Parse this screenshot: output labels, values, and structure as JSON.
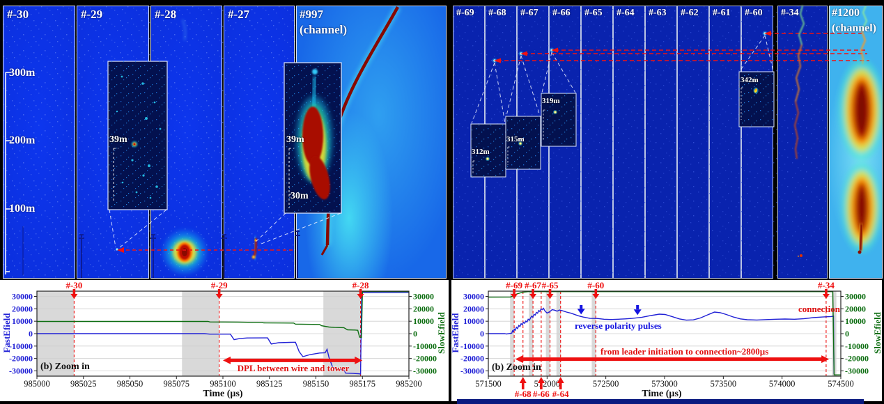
{
  "colors": {
    "fast_curve": "#2121d6",
    "slow_curve": "#0e6e12",
    "marker_red": "#ee1111",
    "annotation_blue": "#1414e0",
    "band_gray": "#d9d9d9",
    "frame_bg_left": "#0a2cd4",
    "frame_bg_right": "#0923ae",
    "channel_red": "#8a0a00"
  },
  "panels": {
    "left": {
      "frames": [
        {
          "label": "#-30"
        },
        {
          "label": "#-29"
        },
        {
          "label": "#-28"
        },
        {
          "label": "#-27"
        },
        {
          "label": "#997",
          "label2": "(channel)"
        }
      ],
      "ruler_labels": [
        "300m",
        "200m",
        "100m"
      ],
      "inset29_label": "39m",
      "inset27_top": "39m",
      "inset27_bottom": "30m"
    },
    "right": {
      "frames": [
        {
          "label": "#-69"
        },
        {
          "label": "#-68"
        },
        {
          "label": "#-67"
        },
        {
          "label": "#-66"
        },
        {
          "label": "#-65"
        },
        {
          "label": "#-64"
        },
        {
          "label": "#-63"
        },
        {
          "label": "#-62"
        },
        {
          "label": "#-61"
        },
        {
          "label": "#-60"
        },
        {
          "label": "#-34"
        },
        {
          "label": "#1200",
          "label2": "(channel)"
        }
      ],
      "insets": [
        "312m",
        "315m",
        "319m",
        "342m"
      ]
    }
  },
  "chart_data": [
    {
      "type": "line",
      "xlabel": "Time (µs)",
      "ylabel_left": "FastEfield",
      "ylabel_right": "SlowEfield",
      "xlim": [
        985000,
        985200
      ],
      "ylim": [
        -34200,
        34200
      ],
      "x_ticks": [
        985000,
        985025,
        985050,
        985075,
        985100,
        985125,
        985150,
        985175,
        985200
      ],
      "y_ticks": [
        30000,
        20000,
        10000,
        0,
        -10000,
        -20000,
        -30000
      ],
      "exposure_bands": [
        [
          985000,
          985020
        ],
        [
          985078,
          985098
        ],
        [
          985154,
          985174
        ]
      ],
      "frame_markers": [
        {
          "label": "#-30",
          "t": 985020,
          "pos": "top"
        },
        {
          "label": "#-29",
          "t": 985098,
          "pos": "top"
        },
        {
          "label": "#-28",
          "t": 985174,
          "pos": "top"
        }
      ],
      "span_arrow": {
        "t0": 985100,
        "t1": 985175,
        "v": -21500
      },
      "series": [
        {
          "name": "FastEfield",
          "color": "#2121d6",
          "points": [
            [
              985000,
              0
            ],
            [
              985090,
              0
            ],
            [
              985093,
              -400
            ],
            [
              985104,
              -400
            ],
            [
              985106,
              -4800
            ],
            [
              985109,
              -4000
            ],
            [
              985113,
              -3500
            ],
            [
              985124,
              -3400
            ],
            [
              985126,
              -8300
            ],
            [
              985130,
              -7300
            ],
            [
              985136,
              -7000
            ],
            [
              985139,
              -6900
            ],
            [
              985141,
              -14500
            ],
            [
              985143,
              -18500
            ],
            [
              985147,
              -16800
            ],
            [
              985152,
              -15600
            ],
            [
              985155,
              -15400
            ],
            [
              985156,
              -12600
            ],
            [
              985157,
              -19000
            ],
            [
              985159,
              -27000
            ],
            [
              985161,
              -28800
            ],
            [
              985165,
              -29200
            ],
            [
              985166,
              -31800
            ],
            [
              985170,
              -32000
            ],
            [
              985173,
              -32300
            ],
            [
              985174,
              -32500
            ],
            [
              985174.6,
              33000
            ],
            [
              985200,
              33200
            ]
          ]
        },
        {
          "name": "SlowEfield",
          "color": "#0e6e12",
          "points": [
            [
              985000,
              9800
            ],
            [
              985092,
              9800
            ],
            [
              985093,
              9400
            ],
            [
              985108,
              9300
            ],
            [
              985116,
              9100
            ],
            [
              985121,
              9050
            ],
            [
              985122,
              8700
            ],
            [
              985132,
              8600
            ],
            [
              985138,
              8500
            ],
            [
              985139,
              7700
            ],
            [
              985145,
              7500
            ],
            [
              985152,
              7400
            ],
            [
              985153,
              6400
            ],
            [
              985157,
              5300
            ],
            [
              985160,
              5000
            ],
            [
              985165,
              4800
            ],
            [
              985167,
              3100
            ],
            [
              985171,
              2900
            ],
            [
              985172.5,
              2700
            ],
            [
              985173.5,
              -2800
            ],
            [
              985174.5,
              -3000
            ],
            [
              985175,
              34000
            ],
            [
              985200,
              33800
            ]
          ]
        }
      ],
      "annotations": {
        "zoom_in": "(b) Zoom in",
        "span_label": "DPL between wire and tower"
      }
    },
    {
      "type": "line",
      "xlabel": "Time (µs)",
      "ylabel_left": "FastEfield",
      "ylabel_right": "SlowEfield",
      "xlim": [
        571500,
        574500
      ],
      "ylim": [
        -34200,
        34200
      ],
      "x_ticks": [
        571500,
        572000,
        572500,
        573000,
        573500,
        574000,
        574500
      ],
      "y_ticks": [
        30000,
        20000,
        10000,
        0,
        -10000,
        -20000,
        -30000
      ],
      "exposure_bands": [
        [
          571685,
          571720
        ],
        [
          571845,
          571880
        ],
        [
          571990,
          572025
        ],
        [
          572080,
          572115
        ],
        [
          572380,
          572415
        ],
        [
          574425,
          574462
        ]
      ],
      "frame_markers": [
        {
          "label": "#-69",
          "t": 571720,
          "pos": "top"
        },
        {
          "label": "#-68",
          "t": 571795,
          "pos": "bottom"
        },
        {
          "label": "#-67",
          "t": 571880,
          "pos": "top"
        },
        {
          "label": "#-66",
          "t": 571950,
          "pos": "bottom"
        },
        {
          "label": "#-65",
          "t": 572025,
          "pos": "top"
        },
        {
          "label": "#-64",
          "t": 572115,
          "pos": "bottom"
        },
        {
          "label": "#-60",
          "t": 572415,
          "pos": "top"
        },
        {
          "label": "#-34",
          "t": 574375,
          "pos": "top"
        }
      ],
      "span_arrow": {
        "t0": 571730,
        "t1": 574400,
        "v": -20500
      },
      "pulse_arrows": [
        {
          "t": 572290,
          "v_from": 23000,
          "v_to": 15500
        },
        {
          "t": 572770,
          "v_from": 23000,
          "v_to": 15000
        }
      ],
      "series": [
        {
          "name": "FastEfield",
          "color": "#2121d6",
          "points": [
            [
              571500,
              0
            ],
            [
              571640,
              0
            ],
            [
              571655,
              -300
            ],
            [
              571680,
              100
            ],
            [
              571700,
              400
            ],
            [
              571706,
              2300
            ],
            [
              571713,
              1500
            ],
            [
              571721,
              3600
            ],
            [
              571729,
              2700
            ],
            [
              571739,
              5100
            ],
            [
              571749,
              4100
            ],
            [
              571759,
              6600
            ],
            [
              571769,
              5700
            ],
            [
              571779,
              8100
            ],
            [
              571789,
              7100
            ],
            [
              571799,
              9100
            ],
            [
              571809,
              8300
            ],
            [
              571819,
              10100
            ],
            [
              571829,
              9300
            ],
            [
              571839,
              11600
            ],
            [
              571849,
              10700
            ],
            [
              571859,
              12600
            ],
            [
              571869,
              14100
            ],
            [
              571879,
              13300
            ],
            [
              571889,
              15600
            ],
            [
              571899,
              14900
            ],
            [
              571909,
              17100
            ],
            [
              571919,
              16400
            ],
            [
              571929,
              18600
            ],
            [
              571939,
              17900
            ],
            [
              571949,
              19900
            ],
            [
              571959,
              19300
            ],
            [
              571969,
              20400
            ],
            [
              571982,
              18200
            ],
            [
              572000,
              16600
            ],
            [
              572022,
              17600
            ],
            [
              572043,
              19300
            ],
            [
              572065,
              18900
            ],
            [
              572085,
              18100
            ],
            [
              572105,
              19000
            ],
            [
              572125,
              18600
            ],
            [
              572165,
              17400
            ],
            [
              572205,
              16400
            ],
            [
              572265,
              14400
            ],
            [
              572305,
              13400
            ],
            [
              572365,
              12300
            ],
            [
              572425,
              12200
            ],
            [
              572485,
              11600
            ],
            [
              572545,
              11400
            ],
            [
              572605,
              11600
            ],
            [
              572665,
              11900
            ],
            [
              572725,
              12300
            ],
            [
              572805,
              13100
            ],
            [
              572885,
              14600
            ],
            [
              572955,
              15700
            ],
            [
              573005,
              15400
            ],
            [
              573065,
              13700
            ],
            [
              573125,
              11900
            ],
            [
              573185,
              10900
            ],
            [
              573245,
              11100
            ],
            [
              573305,
              12600
            ],
            [
              573365,
              15100
            ],
            [
              573425,
              17400
            ],
            [
              573475,
              16900
            ],
            [
              573525,
              15400
            ],
            [
              573585,
              13400
            ],
            [
              573645,
              11900
            ],
            [
              573705,
              11200
            ],
            [
              573785,
              11000
            ],
            [
              573865,
              11300
            ],
            [
              573945,
              11600
            ],
            [
              574025,
              11800
            ],
            [
              574105,
              11600
            ],
            [
              574185,
              12000
            ],
            [
              574265,
              12900
            ],
            [
              574345,
              13400
            ],
            [
              574420,
              13800
            ],
            [
              574438,
              14200
            ],
            [
              574442,
              -32500
            ]
          ]
        },
        {
          "name": "SlowEfield",
          "color": "#0e6e12",
          "points": [
            [
              571500,
              29400
            ],
            [
              571688,
              29500
            ],
            [
              571712,
              30400
            ],
            [
              571745,
              32000
            ],
            [
              571790,
              33300
            ],
            [
              571840,
              33800
            ],
            [
              574432,
              33800
            ],
            [
              574443,
              -33200
            ],
            [
              574500,
              -33200
            ]
          ]
        }
      ],
      "annotations": {
        "zoom_in": "(b) Zoom in",
        "span_label": "from leader initiation to connection~2800µs",
        "reverse": "reverse polarity pulses",
        "connection": "connection"
      }
    }
  ]
}
